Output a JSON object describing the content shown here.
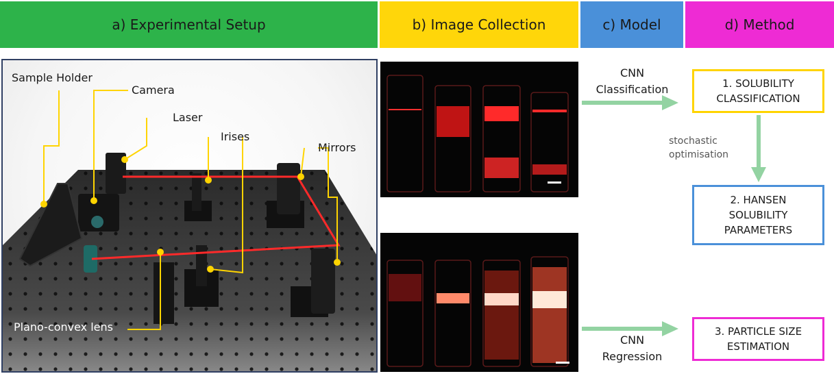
{
  "headers": [
    {
      "label": "a) Experimental Setup",
      "color": "#2db34a"
    },
    {
      "label": "b) Image Collection",
      "color": "#ffd60a"
    },
    {
      "label": "c) Model",
      "color": "#4a90d9"
    },
    {
      "label": "d) Method",
      "color": "#ee2bd4"
    }
  ],
  "setup_labels": {
    "sample_holder": "Sample Holder",
    "camera": "Camera",
    "laser": "Laser",
    "irises": "Irises",
    "mirrors": "Mirrors",
    "lens": "Plano-convex lens"
  },
  "model": {
    "top": "CNN\nClassification",
    "bottom": "CNN\nRegression",
    "stochastic": "stochastic\noptimisation"
  },
  "method": {
    "box1": "1. SOLUBILITY\nCLASSIFICATION",
    "box2": "2. HANSEN\nSOLUBILITY\nPARAMETERS",
    "box3": "3. PARTICLE SIZE\nESTIMATION"
  },
  "colors": {
    "label_line": "#ffd400",
    "laser_beam": "#ff2a2a",
    "arrow": "#93d3a2",
    "box1_border": "#ffd400",
    "box2_border": "#4a90d9",
    "box3_border": "#ee2bd4"
  }
}
